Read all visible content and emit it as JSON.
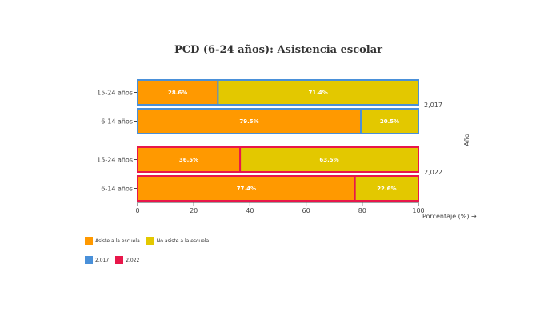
{
  "chart_data": {
    "type": "bar",
    "orientation": "horizontal",
    "stacked": true,
    "title": "PCD (6-24 años): Asistencia escolar",
    "xlabel": "Porcentaje (%) →",
    "ylabel": "Año",
    "xlim": [
      0,
      100
    ],
    "x_ticks": [
      "0",
      "20",
      "40",
      "60",
      "80",
      "100"
    ],
    "groups": [
      {
        "label": "2,017",
        "border_color": "#4a90d9",
        "categories": [
          "15-24 años",
          "6-14 años"
        ],
        "series": [
          {
            "name": "Asiste a la escuela",
            "values": [
              28.6,
              79.5
            ],
            "labels": [
              "28.6%",
              "79.5%"
            ]
          },
          {
            "name": "No asiste a la escuela",
            "values": [
              71.4,
              20.5
            ],
            "labels": [
              "71.4%",
              "20.5%"
            ]
          }
        ]
      },
      {
        "label": "2,022",
        "border_color": "#e8174a",
        "categories": [
          "15-24 años",
          "6-14 años"
        ],
        "series": [
          {
            "name": "Asiste a la escuela",
            "values": [
              36.5,
              77.4
            ],
            "labels": [
              "36.5%",
              "77.4%"
            ]
          },
          {
            "name": "No asiste a la escuela",
            "values": [
              63.5,
              22.6
            ],
            "labels": [
              "63.5%",
              "22.6%"
            ]
          }
        ]
      }
    ],
    "series_colors": [
      "#ff9900",
      "#e3c800"
    ],
    "legend_fill": [
      {
        "name": "Asiste a la escuela",
        "color": "#ff9900"
      },
      {
        "name": "No asiste a la escuela",
        "color": "#e3c800"
      }
    ],
    "legend_border": [
      {
        "name": "2,017",
        "color": "#4a90d9"
      },
      {
        "name": "2,022",
        "color": "#e8174a"
      }
    ],
    "legend_placement": "bottom-left",
    "grid": false
  }
}
